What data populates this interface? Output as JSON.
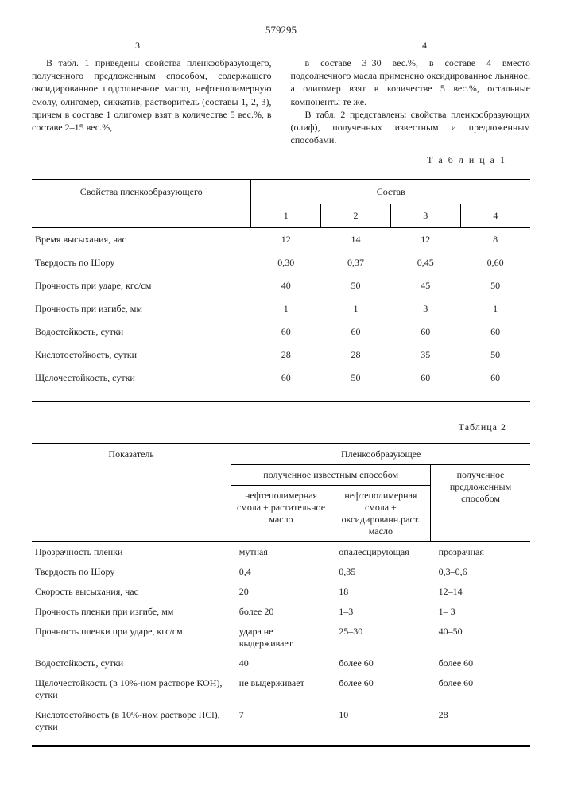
{
  "doc_number": "579295",
  "page_left": "3",
  "page_right": "4",
  "para_left": "В табл. 1 приведены свойства пленкообразующего, полученного предложенным способом, содержащего оксидированное подсолнечное масло, нефтеполимерную смолу, олигомер, сиккатив, растворитель (составы 1, 2, 3), причем в составе 1 олигомер взят в количестве 5 вес.%, в составе 2–15 вес.%,",
  "para_right_1": "в составе 3–30 вес.%, в составе 4 вместо подсолнечного масла применено оксидированное льняное, а олигомер взят в количестве 5 вес.%, остальные компоненты те же.",
  "para_right_2": "В табл. 2 представлены свойства пленкообразующих (олиф), полученных известным и предложенным способами.",
  "table1": {
    "label": "Т а б л и ц а 1",
    "head_left": "Свойства пленкообразующего",
    "head_right": "Состав",
    "cols": [
      "1",
      "2",
      "3",
      "4"
    ],
    "rows": [
      {
        "label": "Время высыхания, час",
        "v": [
          "12",
          "14",
          "12",
          "8"
        ]
      },
      {
        "label": "Твердость по Шору",
        "v": [
          "0,30",
          "0,37",
          "0,45",
          "0,60"
        ]
      },
      {
        "label": "Прочность при ударе, кгс/см",
        "v": [
          "40",
          "50",
          "45",
          "50"
        ]
      },
      {
        "label": "Прочность при изгибе, мм",
        "v": [
          "1",
          "1",
          "3",
          "1"
        ]
      },
      {
        "label": "Водостойкость, сутки",
        "v": [
          "60",
          "60",
          "60",
          "60"
        ]
      },
      {
        "label": "Кислотостойкость, сутки",
        "v": [
          "28",
          "28",
          "35",
          "50"
        ]
      },
      {
        "label": "Щелочестойкость, сутки",
        "v": [
          "60",
          "50",
          "60",
          "60"
        ]
      }
    ]
  },
  "table2": {
    "label": "Таблица 2",
    "head_left": "Показатель",
    "head_top": "Пленкообразующее",
    "head_known": "полученное известным способом",
    "sub1": "нефтеполимерная смола + растительное масло",
    "sub2": "нефтеполимерная смола + оксидированн.раст. масло",
    "head_prop": "полученное предложенным способом",
    "rows": [
      {
        "label": "Прозрачность пленки",
        "v": [
          "мутная",
          "опалесцирующая",
          "прозрачная"
        ]
      },
      {
        "label": "Твердость по Шору",
        "v": [
          "0,4",
          "0,35",
          "0,3–0,6"
        ]
      },
      {
        "label": "Скорость высыхания, час",
        "v": [
          "20",
          "18",
          "12–14"
        ]
      },
      {
        "label": "Прочность пленки при изгибе, мм",
        "v": [
          "более 20",
          "1–3",
          "1– 3"
        ]
      },
      {
        "label": "Прочность пленки при ударе, кгс/см",
        "v": [
          "удара не выдерживает",
          "25–30",
          "40–50"
        ]
      },
      {
        "label": "Водостойкость, сутки",
        "v": [
          "40",
          "более 60",
          "более 60"
        ]
      },
      {
        "label": "Щелочестойкость (в 10%-ном растворе КОН), сутки",
        "v": [
          "не выдерживает",
          "более 60",
          "более 60"
        ]
      },
      {
        "label": "Кислотостойкость (в 10%-ном растворе HCl), сутки",
        "v": [
          "7",
          "10",
          "28"
        ]
      }
    ]
  }
}
